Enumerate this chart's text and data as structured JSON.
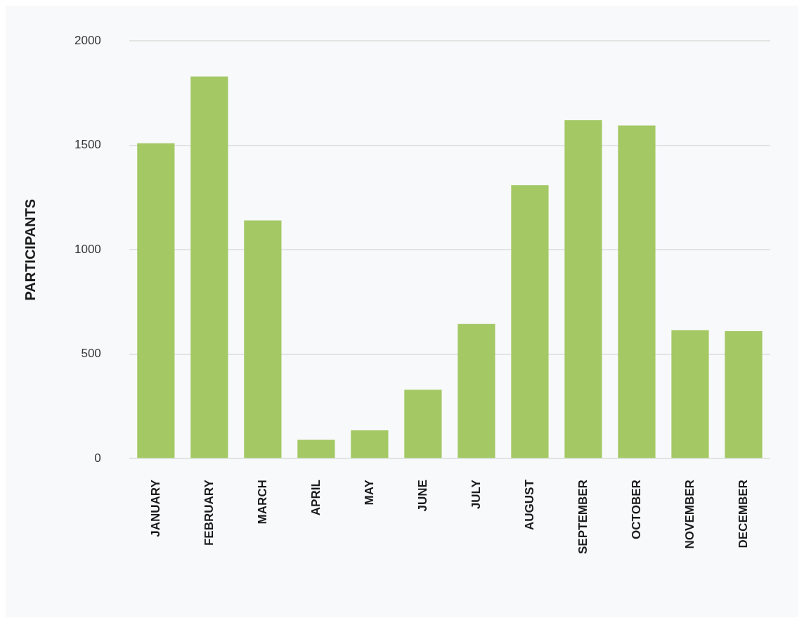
{
  "chart_data": {
    "type": "bar",
    "ylabel": "PARTICIPANTS",
    "categories": [
      "JANUARY",
      "FEBRUARY",
      "MARCH",
      "APRIL",
      "MAY",
      "JUNE",
      "JULY",
      "AUGUST",
      "SEPTEMBER",
      "OCTOBER",
      "NOVEMBER",
      "DECEMBER"
    ],
    "values": [
      1510,
      1830,
      1140,
      90,
      135,
      330,
      645,
      1310,
      1620,
      1595,
      615,
      610
    ],
    "color": "#a3c864",
    "ylim": [
      0,
      2000
    ],
    "yticks": [
      0,
      500,
      1000,
      1500,
      2000
    ],
    "grid": "y",
    "legend": false
  }
}
